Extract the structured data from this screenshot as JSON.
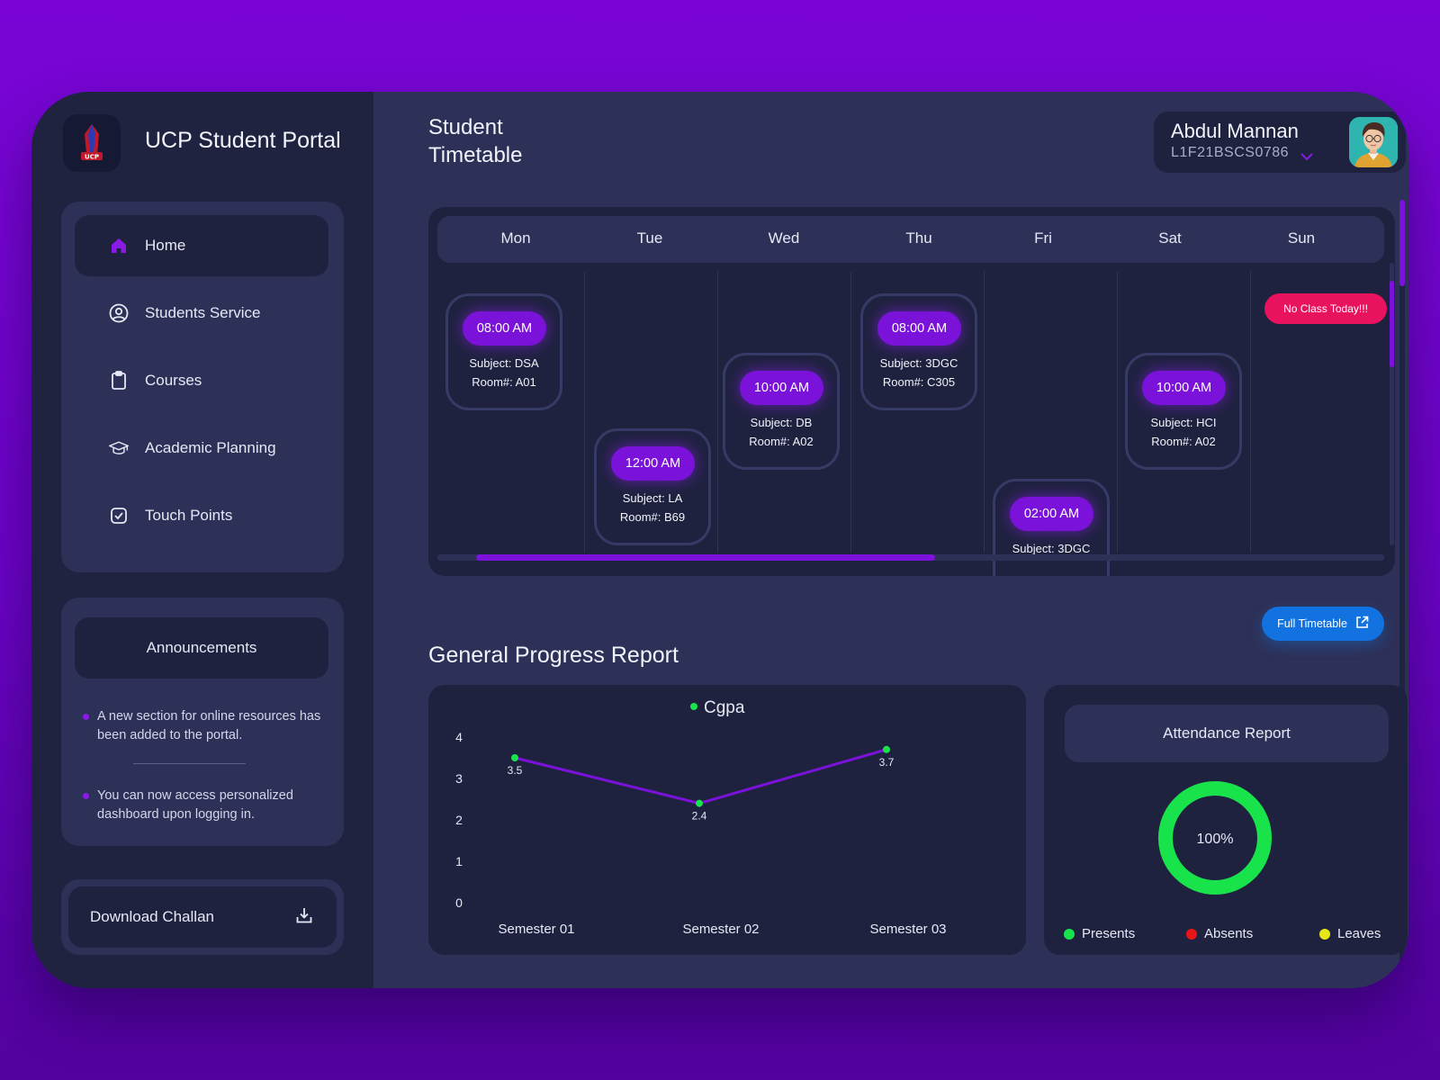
{
  "app": {
    "title": "UCP Student Portal",
    "logo_text": "UCP"
  },
  "sidebar": {
    "items": [
      {
        "label": "Home",
        "icon": "home-icon"
      },
      {
        "label": "Students Service",
        "icon": "user-circle-icon"
      },
      {
        "label": "Courses",
        "icon": "clipboard-icon"
      },
      {
        "label": "Academic Planning",
        "icon": "graduation-cap-icon"
      },
      {
        "label": "Touch Points",
        "icon": "check-square-icon"
      }
    ]
  },
  "announcements": {
    "title": "Announcements",
    "items": [
      "A new section for online resources has been added to the portal.",
      "You can now access personalized dashboard upon logging in."
    ]
  },
  "download": {
    "label": "Download Challan",
    "icon": "download-icon"
  },
  "header": {
    "title_line1": "Student",
    "title_line2": "Timetable",
    "user_name": "Abdul Mannan",
    "user_id": "L1F21BSCS0786"
  },
  "timetable": {
    "days": [
      "Mon",
      "Tue",
      "Wed",
      "Thu",
      "Fri",
      "Sat",
      "Sun"
    ],
    "classes": [
      {
        "time": "08:00 AM",
        "subject": "Subject: DSA",
        "room": "Room#: A01"
      },
      {
        "time": "12:00 AM",
        "subject": "Subject: LA",
        "room": "Room#: B69"
      },
      {
        "time": "10:00 AM",
        "subject": "Subject: DB",
        "room": "Room#: A02"
      },
      {
        "time": "08:00 AM",
        "subject": "Subject: 3DGC",
        "room": "Room#: C305"
      },
      {
        "time": "02:00 AM",
        "subject": "Subject: 3DGC",
        "room": ""
      },
      {
        "time": "10:00 AM",
        "subject": "Subject: HCI",
        "room": "Room#: A02"
      }
    ],
    "no_class": "No Class Today!!!"
  },
  "full_timetable": {
    "label": "Full Timetable",
    "icon": "external-link-icon"
  },
  "progress": {
    "title": "General Progress Report"
  },
  "chart_data": {
    "type": "line",
    "categories": [
      "Semester 01",
      "Semester 02",
      "Semester 03"
    ],
    "series": [
      {
        "name": "Cgpa",
        "values": [
          3.5,
          2.4,
          3.7
        ]
      }
    ],
    "ylim": [
      0,
      4
    ],
    "yticks": [
      "0",
      "1",
      "2",
      "3",
      "4"
    ],
    "line_color": "#7a12d9",
    "point_color": "#19e34a",
    "legend_position": "top-center"
  },
  "attendance": {
    "title": "Attendance Report",
    "percent": "100%",
    "presents_fraction": 1.0,
    "legend": [
      {
        "label": "Presents",
        "color": "#19e34a"
      },
      {
        "label": "Absents",
        "color": "#e81616"
      },
      {
        "label": "Leaves",
        "color": "#e6e816"
      }
    ]
  },
  "colors": {
    "accent": "#7a12d9",
    "alert": "#e8125f",
    "link": "#1273e0",
    "success": "#19e34a"
  }
}
